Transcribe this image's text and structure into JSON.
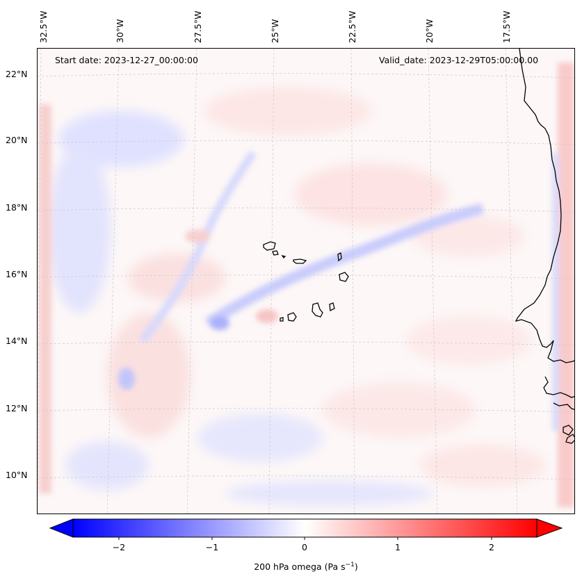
{
  "map": {
    "longitude_labels": [
      "32.5°W",
      "30°W",
      "27.5°W",
      "25°W",
      "22.5°W",
      "20°W",
      "17.5°W"
    ],
    "latitude_labels": [
      "22°N",
      "20°N",
      "18°N",
      "16°N",
      "14°N",
      "12°N",
      "10°N"
    ],
    "start_date": "Start date: 2023-12-27_00:00:00",
    "valid_date": "Valid_date: 2023-12-29T05:00:00.00",
    "field": "200 hPa omega"
  },
  "colorbar": {
    "ticks": [
      "−2",
      "−1",
      "0",
      "1",
      "2"
    ],
    "label_text": "200 hPa omega (Pa s",
    "label_exp": "−1",
    "label_close": ")",
    "range": [
      -2.6,
      2.6
    ],
    "colors": {
      "min": "#0000ff",
      "mid": "#ffffff",
      "max": "#ff0000"
    }
  }
}
